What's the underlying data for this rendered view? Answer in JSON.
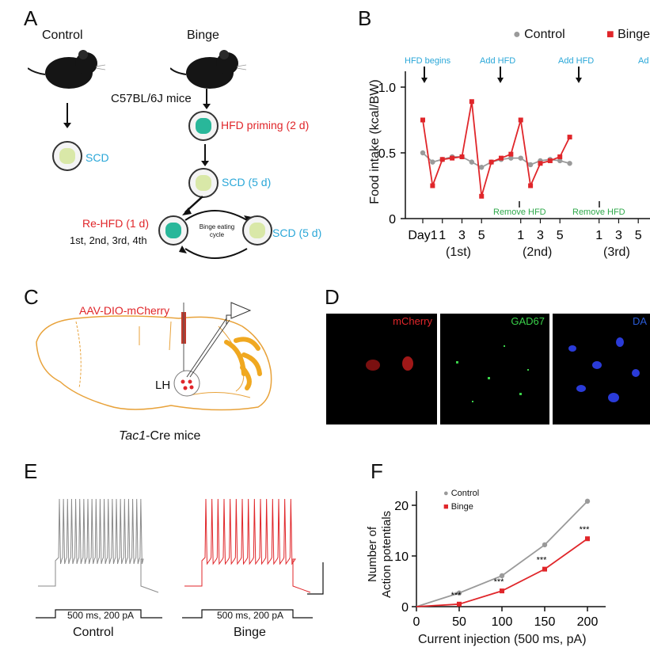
{
  "panelA": {
    "label": "A",
    "control_title": "Control",
    "binge_title": "Binge",
    "strain": "C57BL/6J mice",
    "scd": "SCD",
    "hfd_priming": "HFD priming (2 d)",
    "scd5_top": "SCD (5 d)",
    "rehfd": "Re-HFD (1 d)",
    "rounds": "1st, 2nd, 3rd, 4th",
    "cycle": "Binge eating cycle",
    "scd5_right": "SCD (5 d)"
  },
  "panelB": {
    "label": "B",
    "legend_control": "Control",
    "legend_binge": "Binge",
    "hfd_begins": "HFD begins",
    "add_hfd_1": "Add HFD",
    "add_hfd_2": "Add HFD",
    "add_hfd_3": "Ad",
    "remove_hfd_1": "Remove HFD",
    "remove_hfd_2": "Remove HFD",
    "ylabel": "Food intake (kcal/BW)",
    "week1": "(1st)",
    "week2": "(2nd)",
    "week3": "(3rd)",
    "colors": {
      "control": "#9a9a9a",
      "binge": "#e0262a",
      "annot_blue": "#2aa7d8",
      "annot_green": "#2ea84a"
    }
  },
  "panelC": {
    "label": "C",
    "virus": "AAV-DIO-mCherry",
    "region": "LH",
    "mouse_line_italic": "Tac1",
    "mouse_line_rest": "-Cre mice"
  },
  "panelD": {
    "label": "D",
    "ch1": "mCherry",
    "ch2": "GAD67",
    "ch3": "DA"
  },
  "panelE": {
    "label": "E",
    "stim_control": "500 ms, 200 pA",
    "stim_binge": "500 ms, 200 pA",
    "name_control": "Control",
    "name_binge": "Binge"
  },
  "panelF": {
    "label": "F",
    "legend_control": "Control",
    "legend_binge": "Binge",
    "ylabel_line1": "Number of",
    "ylabel_line2": "Action potentials",
    "xlabel": "Current injection (500 ms, pA)",
    "sig": "***"
  },
  "chart_data": [
    {
      "type": "line",
      "panel": "B",
      "x": [
        "Day1",
        "",
        "",
        "",
        "",
        "1",
        "",
        "",
        "",
        "",
        "1",
        "",
        "",
        "",
        "",
        ""
      ],
      "x_tick_labels": [
        "Day1",
        "1",
        "3",
        "5",
        "1",
        "3",
        "5",
        "1",
        "3",
        "5"
      ],
      "ylabel": "Food intake (kcal/BW)",
      "ylim": [
        0,
        1.0
      ],
      "yticks": [
        "0",
        "0.5",
        "1.0"
      ],
      "series": [
        {
          "name": "Control",
          "values": [
            0.5,
            0.43,
            0.45,
            0.47,
            0.47,
            0.43,
            0.39,
            0.43,
            0.45,
            0.46,
            0.46,
            0.41,
            0.44,
            0.45,
            0.44,
            0.42
          ]
        },
        {
          "name": "Binge",
          "values": [
            0.75,
            0.25,
            0.45,
            0.46,
            0.47,
            0.89,
            0.17,
            0.43,
            0.46,
            0.49,
            0.75,
            0.25,
            0.42,
            0.44,
            0.47,
            0.62
          ]
        }
      ]
    },
    {
      "type": "line",
      "panel": "F",
      "x": [
        0,
        50,
        100,
        150,
        200
      ],
      "xlabel": "Current injection (500 ms, pA)",
      "ylabel": "Number of Action potentials",
      "xlim": [
        0,
        200
      ],
      "ylim": [
        0,
        20
      ],
      "series": [
        {
          "name": "Control",
          "values": [
            0,
            2.7,
            6.1,
            12.2,
            20.8
          ]
        },
        {
          "name": "Binge",
          "values": [
            0,
            0.5,
            3.1,
            7.4,
            13.4
          ]
        }
      ]
    }
  ]
}
